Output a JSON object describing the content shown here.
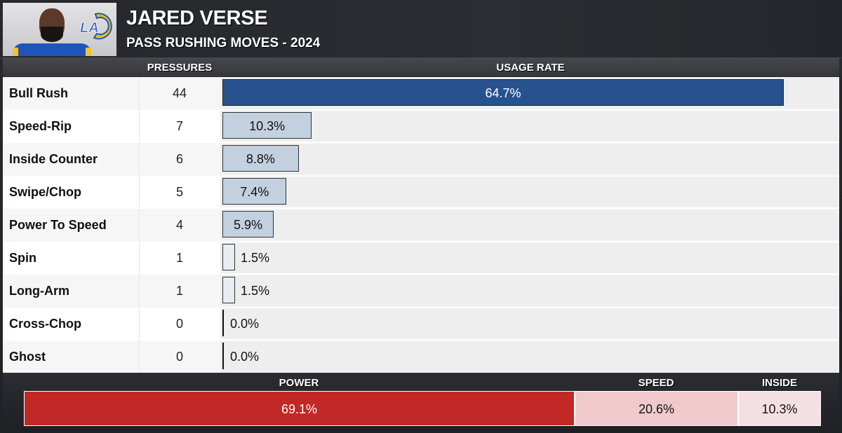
{
  "header": {
    "player_name": "JARED VERSE",
    "subtitle": "PASS RUSHING MOVES - 2024",
    "team_logo": "LA",
    "photo": "player-headshot"
  },
  "columns": {
    "pressures": "PRESSURES",
    "usage_rate": "USAGE RATE"
  },
  "rows": [
    {
      "move": "Bull Rush",
      "pressures": "44",
      "usage": "64.7%",
      "pct": 64.7,
      "style": "primary"
    },
    {
      "move": "Speed-Rip",
      "pressures": "7",
      "usage": "10.3%",
      "pct": 10.3,
      "style": "secondary"
    },
    {
      "move": "Inside Counter",
      "pressures": "6",
      "usage": "8.8%",
      "pct": 8.8,
      "style": "secondary"
    },
    {
      "move": "Swipe/Chop",
      "pressures": "5",
      "usage": "7.4%",
      "pct": 7.4,
      "style": "secondary"
    },
    {
      "move": "Power To Speed",
      "pressures": "4",
      "usage": "5.9%",
      "pct": 5.9,
      "style": "secondary"
    },
    {
      "move": "Spin",
      "pressures": "1",
      "usage": "1.5%",
      "pct": 1.5,
      "style": "minor"
    },
    {
      "move": "Long-Arm",
      "pressures": "1",
      "usage": "1.5%",
      "pct": 1.5,
      "style": "minor"
    },
    {
      "move": "Cross-Chop",
      "pressures": "0",
      "usage": "0.0%",
      "pct": 0.0,
      "style": "zero"
    },
    {
      "move": "Ghost",
      "pressures": "0",
      "usage": "0.0%",
      "pct": 0.0,
      "style": "zero"
    }
  ],
  "summary": {
    "power": {
      "label": "POWER",
      "value": "69.1%",
      "pct": 69.1
    },
    "speed": {
      "label": "SPEED",
      "value": "20.6%",
      "pct": 20.6
    },
    "inside": {
      "label": "INSIDE",
      "value": "10.3%",
      "pct": 10.3
    }
  },
  "colors": {
    "primary_bar": "#27528e",
    "secondary_bar": "#c3d0e0",
    "minor_bar": "#e8edf3",
    "power": "#c12826",
    "speed": "#f0c9cd",
    "inside": "#f4e0e2",
    "header_bg": "#2a2c31"
  },
  "chart_data": [
    {
      "type": "bar",
      "orientation": "horizontal",
      "title": "JARED VERSE — PASS RUSHING MOVES - 2024",
      "categories": [
        "Bull Rush",
        "Speed-Rip",
        "Inside Counter",
        "Swipe/Chop",
        "Power To Speed",
        "Spin",
        "Long-Arm",
        "Cross-Chop",
        "Ghost"
      ],
      "series": [
        {
          "name": "PRESSURES",
          "values": [
            44,
            7,
            6,
            5,
            4,
            1,
            1,
            0,
            0
          ]
        },
        {
          "name": "USAGE RATE",
          "values": [
            64.7,
            10.3,
            8.8,
            7.4,
            5.9,
            1.5,
            1.5,
            0.0,
            0.0
          ]
        }
      ],
      "xlabel": "USAGE RATE",
      "ylabel": "",
      "xlim": [
        0,
        70
      ]
    },
    {
      "type": "bar",
      "orientation": "stacked-horizontal",
      "categories": [
        "POWER",
        "SPEED",
        "INSIDE"
      ],
      "values": [
        69.1,
        20.6,
        10.3
      ]
    }
  ]
}
